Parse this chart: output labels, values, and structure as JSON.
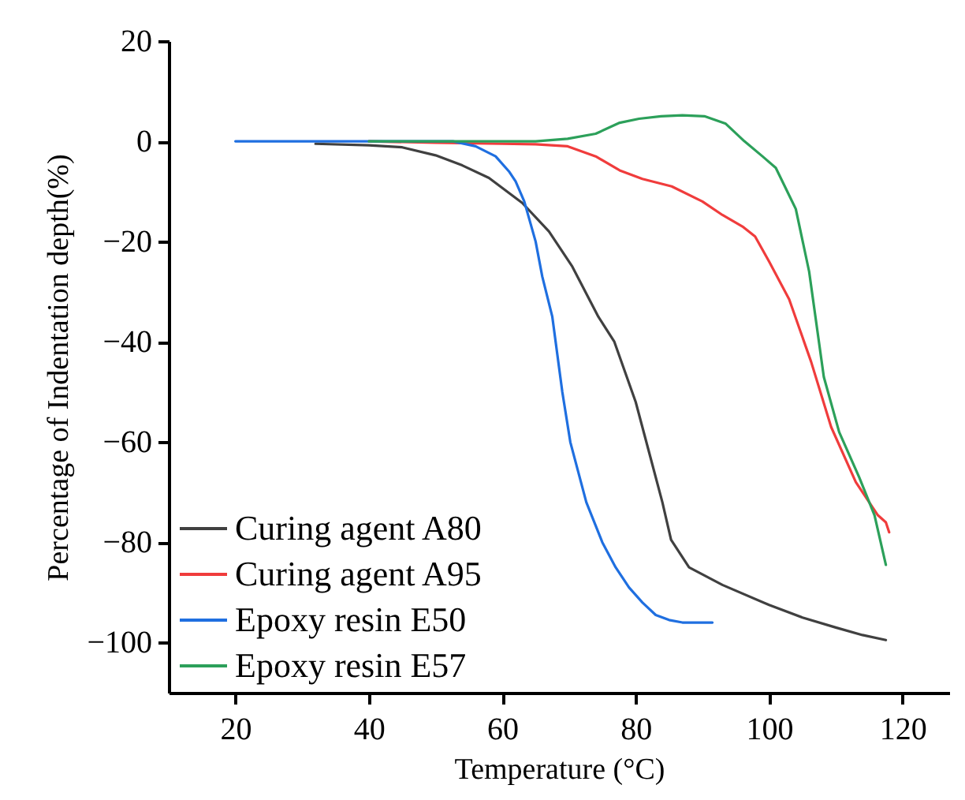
{
  "chart_data": {
    "type": "line",
    "xlabel": "Temperature (°C)",
    "ylabel": "Percentage of Indentation depth(%)",
    "xlim": [
      10,
      127
    ],
    "xticks": [
      20,
      40,
      60,
      80,
      100,
      120
    ],
    "ylim": [
      -110,
      20
    ],
    "yticks": [
      -100,
      -80,
      -60,
      -40,
      -20,
      0,
      20
    ],
    "grid": false,
    "legend": "bottom left",
    "line_style": "solid",
    "marker": "none",
    "series": [
      {
        "name": "Curing agent A80",
        "color": "#404040",
        "x": [
          32,
          40,
          45,
          50,
          54,
          58,
          63,
          67,
          70.5,
          74.4,
          76.8,
          80,
          82,
          84,
          85.3,
          88,
          93,
          100,
          105,
          110,
          114,
          117.5
        ],
        "values": [
          -0.5,
          -0.8,
          -1.2,
          -2.8,
          -4.8,
          -7.3,
          -12.3,
          -18,
          -25,
          -35,
          -40,
          -52,
          -62,
          -72,
          -79.5,
          -85,
          -88.5,
          -92.5,
          -95,
          -97,
          -98.5,
          -99.5
        ]
      },
      {
        "name": "Curing agent A95",
        "color": "#f03c3c",
        "x": [
          40,
          50,
          60,
          65,
          69.8,
          74,
          77.6,
          81,
          85.4,
          90,
          93,
          96,
          97.9,
          100,
          103,
          106.3,
          109.3,
          113,
          116.3,
          117.5,
          118
        ],
        "values": [
          0,
          -0.3,
          -0.5,
          -0.6,
          -1,
          -3,
          -5.8,
          -7.5,
          -9,
          -12,
          -14.7,
          -17,
          -19,
          -24,
          -31.5,
          -44,
          -57,
          -68,
          -74.6,
          -76,
          -78
        ]
      },
      {
        "name": "Epoxy resin E50",
        "color": "#1f6fe0",
        "x": [
          20,
          30,
          40,
          50,
          52.6,
          56,
          59,
          61,
          62,
          63.3,
          65,
          66,
          67.5,
          69,
          70.2,
          72.6,
          75,
          77,
          79,
          81,
          83,
          85,
          87,
          90,
          91.5
        ],
        "values": [
          0,
          0,
          0,
          0,
          0,
          -1,
          -3,
          -6,
          -8,
          -12,
          -20,
          -27,
          -35,
          -50,
          -60,
          -72,
          -80,
          -85,
          -89,
          -92,
          -94.5,
          -95.5,
          -96,
          -96,
          -96
        ]
      },
      {
        "name": "Epoxy resin E57",
        "color": "#2ca05a",
        "x": [
          40,
          50,
          60,
          65,
          69.8,
          74,
          77.6,
          80.5,
          83.8,
          87,
          90.3,
          93.5,
          96.3,
          99,
          101,
          104,
          106,
          108.2,
          110.5,
          113.5,
          115.8,
          117.5
        ],
        "values": [
          0,
          0,
          0,
          0,
          0.5,
          1.5,
          3.7,
          4.5,
          5,
          5.2,
          5,
          3.5,
          0,
          -3,
          -5.3,
          -13.5,
          -26,
          -47,
          -58,
          -67,
          -74.6,
          -84.5
        ]
      }
    ]
  }
}
